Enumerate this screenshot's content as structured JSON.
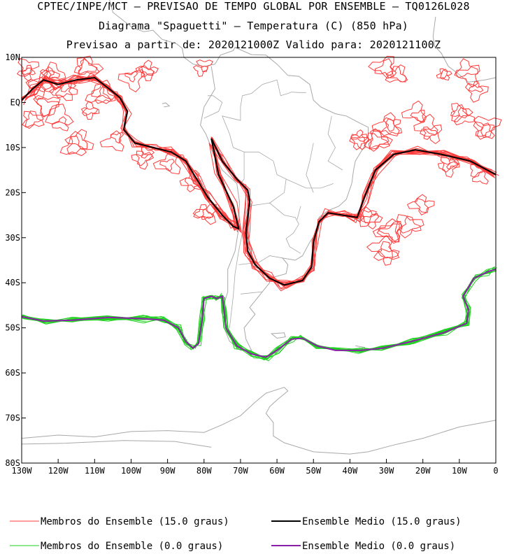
{
  "header": {
    "line1": "CPTEC/INPE/MCT – PREVISAO DE TEMPO GLOBAL POR ENSEMBLE – TQ0126L028",
    "line2": "Diagrama \"Spaguetti\" – Temperatura (C) (850 hPa)",
    "line3": "Previsao a partir de: 2020121000Z  Valido para: 2020121100Z"
  },
  "chart_data": {
    "type": "spaghetti-map",
    "xlim": [
      -130,
      0
    ],
    "ylim": [
      -80,
      10
    ],
    "x_ticks": [
      {
        "v": -130,
        "label": "130W"
      },
      {
        "v": -120,
        "label": "120W"
      },
      {
        "v": -110,
        "label": "110W"
      },
      {
        "v": -100,
        "label": "100W"
      },
      {
        "v": -90,
        "label": "90W"
      },
      {
        "v": -80,
        "label": "80W"
      },
      {
        "v": -70,
        "label": "70W"
      },
      {
        "v": -60,
        "label": "60W"
      },
      {
        "v": -50,
        "label": "50W"
      },
      {
        "v": -40,
        "label": "40W"
      },
      {
        "v": -30,
        "label": "30W"
      },
      {
        "v": -20,
        "label": "20W"
      },
      {
        "v": -10,
        "label": "10W"
      },
      {
        "v": 0,
        "label": "0"
      }
    ],
    "y_ticks": [
      {
        "v": 10,
        "label": "10N"
      },
      {
        "v": 0,
        "label": "EQ"
      },
      {
        "v": -10,
        "label": "10S"
      },
      {
        "v": -20,
        "label": "20S"
      },
      {
        "v": -30,
        "label": "30S"
      },
      {
        "v": -40,
        "label": "40S"
      },
      {
        "v": -50,
        "label": "50S"
      },
      {
        "v": -60,
        "label": "60S"
      },
      {
        "v": -70,
        "label": "70S"
      },
      {
        "v": -80,
        "label": "80S"
      }
    ],
    "colors": {
      "members_15": "#ff3b3b",
      "mean_15": "#000000",
      "members_0": "#1fd01f",
      "mean_0": "#8b1fa8",
      "coast": "#a8a8a8"
    },
    "series": [
      {
        "name": "Ensemble Medio (15.0 graus)",
        "points": [
          [
            -130,
            0.5
          ],
          [
            -127,
            3
          ],
          [
            -124,
            5
          ],
          [
            -120,
            4
          ],
          [
            -115,
            5
          ],
          [
            -110,
            5.5
          ],
          [
            -106,
            3
          ],
          [
            -103,
            1
          ],
          [
            -101,
            -2
          ],
          [
            -102,
            -6
          ],
          [
            -99,
            -9
          ],
          [
            -94,
            -10
          ],
          [
            -89,
            -11
          ],
          [
            -85,
            -13
          ],
          [
            -82,
            -17
          ],
          [
            -79,
            -21
          ],
          [
            -75,
            -25
          ],
          [
            -72,
            -27.5
          ],
          [
            -70.5,
            -28
          ],
          [
            -72,
            -23
          ],
          [
            -76,
            -16
          ],
          [
            -78,
            -8
          ],
          [
            -75,
            -13
          ],
          [
            -71,
            -17
          ],
          [
            -68,
            -19.5
          ],
          [
            -67.5,
            -22
          ],
          [
            -68.5,
            -29
          ],
          [
            -68,
            -33
          ],
          [
            -66,
            -36
          ],
          [
            -62,
            -39
          ],
          [
            -58,
            -40.5
          ],
          [
            -53,
            -39.5
          ],
          [
            -50.5,
            -36.5
          ],
          [
            -50,
            -31
          ],
          [
            -48.5,
            -26.5
          ],
          [
            -46,
            -24.5
          ],
          [
            -42,
            -25
          ],
          [
            -38,
            -25.5
          ],
          [
            -36,
            -21
          ],
          [
            -33,
            -15
          ],
          [
            -28,
            -11.5
          ],
          [
            -22,
            -10.5
          ],
          [
            -15,
            -11.5
          ],
          [
            -7,
            -13
          ],
          [
            0,
            -16
          ]
        ]
      },
      {
        "name": "Ensemble Medio (0.0 graus)",
        "points": [
          [
            -130,
            -47.5
          ],
          [
            -124,
            -48.5
          ],
          [
            -116,
            -48.3
          ],
          [
            -106,
            -47.7
          ],
          [
            -96,
            -48
          ],
          [
            -91,
            -48.3
          ],
          [
            -87,
            -50
          ],
          [
            -85,
            -53
          ],
          [
            -83,
            -54.5
          ],
          [
            -81.5,
            -53.5
          ],
          [
            -80.5,
            -48
          ],
          [
            -80,
            -43.5
          ],
          [
            -78,
            -43
          ],
          [
            -76.5,
            -43.5
          ],
          [
            -75,
            -43
          ],
          [
            -74.5,
            -46
          ],
          [
            -74,
            -50
          ],
          [
            -71,
            -54
          ],
          [
            -67,
            -55.8
          ],
          [
            -63,
            -56.5
          ],
          [
            -60,
            -55
          ],
          [
            -56,
            -52.5
          ],
          [
            -53,
            -52.3
          ],
          [
            -49,
            -54
          ],
          [
            -44,
            -55
          ],
          [
            -37,
            -55
          ],
          [
            -31,
            -54.5
          ],
          [
            -23,
            -53
          ],
          [
            -14,
            -51
          ],
          [
            -8,
            -49
          ],
          [
            -7.5,
            -46
          ],
          [
            -9,
            -43
          ],
          [
            -6,
            -39
          ],
          [
            -2,
            -37.5
          ],
          [
            0,
            -37
          ]
        ]
      }
    ]
  },
  "legend": {
    "members_15": "Membros do Ensemble (15.0 graus)",
    "mean_15": "Ensemble Medio (15.0 graus)",
    "members_0": "Membros do Ensemble (0.0 graus)",
    "mean_0": "Ensemble Medio (0.0 graus)"
  }
}
